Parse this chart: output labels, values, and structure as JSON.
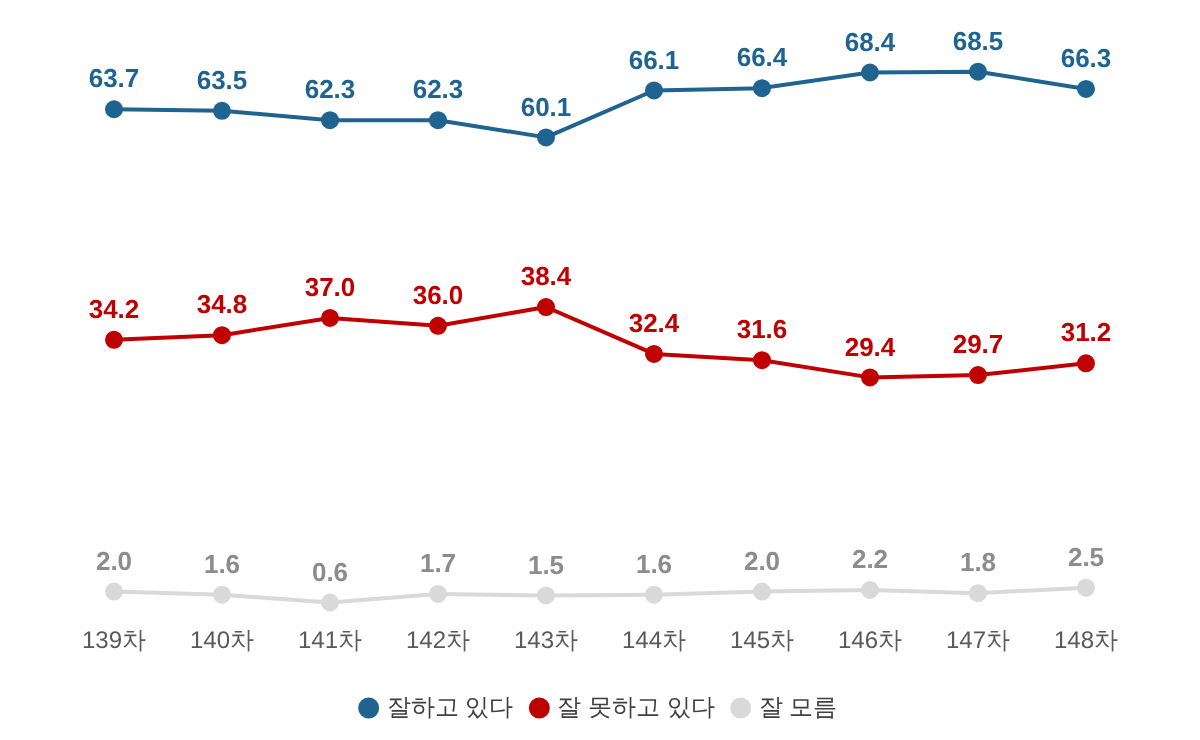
{
  "chart_data": {
    "type": "line",
    "categories": [
      "139차",
      "140차",
      "141차",
      "142차",
      "143차",
      "144차",
      "145차",
      "146차",
      "147차",
      "148차"
    ],
    "series": [
      {
        "name": "잘하고 있다",
        "color": "#1f6391",
        "values": [
          63.7,
          63.5,
          62.3,
          62.3,
          60.1,
          66.1,
          66.4,
          68.4,
          68.5,
          66.3
        ],
        "value_labels": [
          "63.7",
          "63.5",
          "62.3",
          "62.3",
          "60.1",
          "66.1",
          "66.4",
          "68.4",
          "68.5",
          "66.3"
        ]
      },
      {
        "name": "잘 못하고 있다",
        "color": "#c00000",
        "values": [
          34.2,
          34.8,
          37.0,
          36.0,
          38.4,
          32.4,
          31.6,
          29.4,
          29.7,
          31.2
        ],
        "value_labels": [
          "34.2",
          "34.8",
          "37.0",
          "36.0",
          "38.4",
          "32.4",
          "31.6",
          "29.4",
          "29.7",
          "31.2"
        ]
      },
      {
        "name": "잘 모름",
        "color": "#d9d9d9",
        "values": [
          2.0,
          1.6,
          0.6,
          1.7,
          1.5,
          1.6,
          2.0,
          2.2,
          1.8,
          2.5
        ],
        "value_labels": [
          "2.0",
          "1.6",
          "0.6",
          "1.7",
          "1.5",
          "1.6",
          "2.0",
          "2.2",
          "1.8",
          "2.5"
        ]
      }
    ],
    "tick_labels": "x",
    "grid": false,
    "legend": "bottom",
    "marker": "circle",
    "line_style": "solid"
  }
}
